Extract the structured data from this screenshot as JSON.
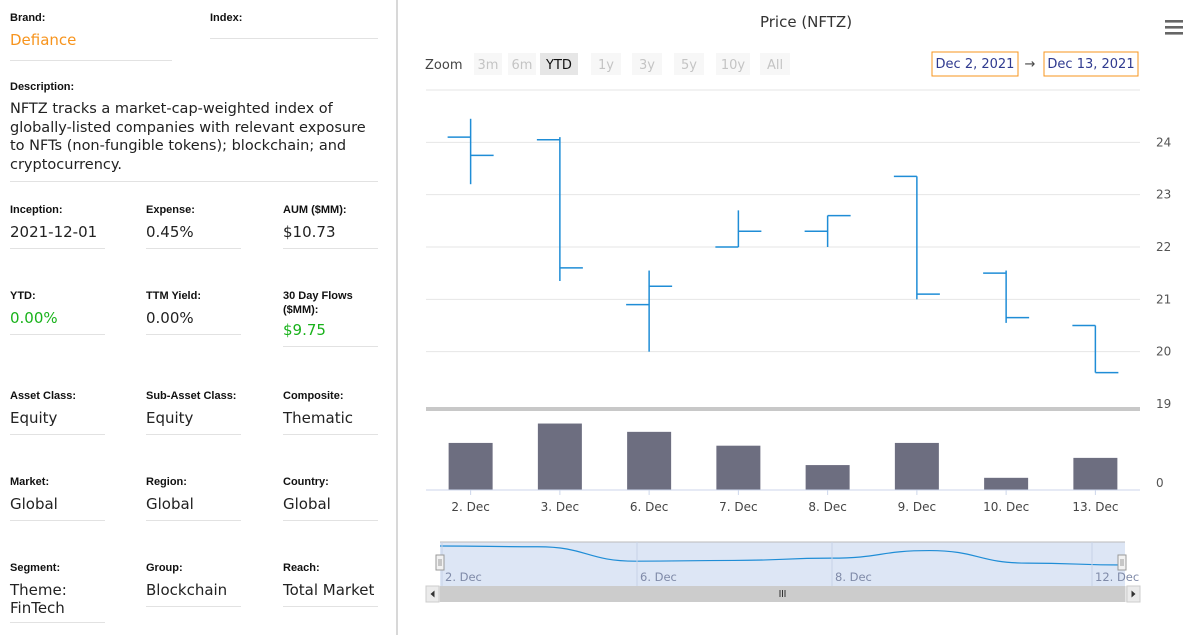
{
  "profile": {
    "brand_label": "Brand:",
    "brand_value": "Defiance",
    "index_label": "Index:",
    "index_value": "",
    "description_label": "Description:",
    "description_value": "NFTZ tracks a market-cap-weighted index of globally-listed companies with relevant exposure to NFTs (non-fungible tokens); blockchain; and cryptocurrency.",
    "inception_label": "Inception:",
    "inception_value": "2021-12-01",
    "expense_label": "Expense:",
    "expense_value": "0.45%",
    "aum_label": "AUM ($MM):",
    "aum_value": "$10.73",
    "ytd_label": "YTD:",
    "ytd_value": "0.00%",
    "ttm_label": "TTM Yield:",
    "ttm_value": "0.00%",
    "flows_label": "30 Day Flows ($MM):",
    "flows_value": "$9.75",
    "asset_class_label": "Asset Class:",
    "asset_class_value": "Equity",
    "sub_asset_label": "Sub-Asset Class:",
    "sub_asset_value": "Equity",
    "composite_label": "Composite:",
    "composite_value": "Thematic",
    "market_label": "Market:",
    "market_value": "Global",
    "region_label": "Region:",
    "region_value": "Global",
    "country_label": "Country:",
    "country_value": "Global",
    "segment_label": "Segment:",
    "segment_value": "Theme: FinTech",
    "group_label": "Group:",
    "group_value": "Blockchain",
    "reach_label": "Reach:",
    "reach_value": "Total Market"
  },
  "colors": {
    "accent_orange": "#f7941d",
    "positive_green": "#19b21b",
    "ohlc_blue": "#1f8dd6",
    "volume_gray": "#6d6e80",
    "navigator_fill": "#c9d7f0"
  },
  "toolbar": {
    "zoom_label": "Zoom",
    "zoom_options": [
      "3m",
      "6m",
      "YTD",
      "1y",
      "3y",
      "5y",
      "10y",
      "All"
    ],
    "zoom_selected": "YTD",
    "date_from": "Dec 2, 2021",
    "date_arrow": "→",
    "date_to": "Dec 13, 2021",
    "menu_icon": "hamburger-menu-icon"
  },
  "chart_data": {
    "type": "ohlc",
    "title": "Price (NFTZ)",
    "categories": [
      "2. Dec",
      "3. Dec",
      "6. Dec",
      "7. Dec",
      "8. Dec",
      "9. Dec",
      "10. Dec",
      "13. Dec"
    ],
    "ohlc": [
      {
        "open": 24.1,
        "high": 24.45,
        "low": 23.2,
        "close": 23.75
      },
      {
        "open": 24.05,
        "high": 24.1,
        "low": 21.35,
        "close": 21.6
      },
      {
        "open": 20.9,
        "high": 21.55,
        "low": 20.0,
        "close": 21.25
      },
      {
        "open": 22.0,
        "high": 22.7,
        "low": 22.0,
        "close": 22.3
      },
      {
        "open": 22.3,
        "high": 22.6,
        "low": 22.0,
        "close": 22.6
      },
      {
        "open": 23.35,
        "high": 23.35,
        "low": 21.0,
        "close": 21.1
      },
      {
        "open": 21.5,
        "high": 21.55,
        "low": 20.55,
        "close": 20.65
      },
      {
        "open": 20.5,
        "high": 20.5,
        "low": 19.6,
        "close": 19.6
      }
    ],
    "y_ticks": [
      19,
      20,
      21,
      22,
      23,
      24
    ],
    "ylim": [
      19,
      25
    ],
    "volume": [
      0.85,
      1.2,
      1.05,
      0.8,
      0.45,
      0.85,
      0.22,
      0.58
    ],
    "volume_ylim": [
      0,
      1.3
    ],
    "volume_ticks": [
      0
    ],
    "navigator": {
      "labels": [
        "2. Dec",
        "6. Dec",
        "8. Dec",
        "12. Dec"
      ],
      "line": [
        1.0,
        0.98,
        0.6,
        0.62,
        0.68,
        0.88,
        0.55,
        0.5
      ]
    },
    "grid": true,
    "legend": "none"
  }
}
